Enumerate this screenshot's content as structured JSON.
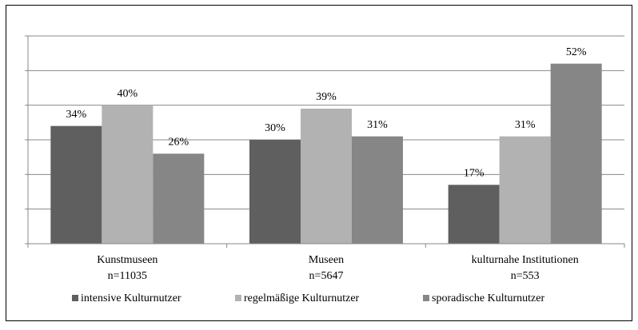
{
  "chart_data": {
    "type": "bar",
    "categories": [
      "Kunstmuseen",
      "Museen",
      "kulturnahe Institutionen"
    ],
    "category_counts": [
      "n=11035",
      "n=5647",
      "n=553"
    ],
    "series": [
      {
        "name": "intensive Kulturnutzer",
        "color": "#5f5f5f",
        "values": [
          34,
          30,
          17
        ],
        "value_labels": [
          "34%",
          "30%",
          "17%"
        ]
      },
      {
        "name": "regelmäßige Kulturnutzer",
        "color": "#b2b2b2",
        "values": [
          40,
          39,
          31
        ],
        "value_labels": [
          "40%",
          "39%",
          "31%"
        ]
      },
      {
        "name": "sporadische Kulturnutzer",
        "color": "#868686",
        "values": [
          26,
          31,
          52
        ],
        "value_labels": [
          "26%",
          "31%",
          "52%"
        ]
      }
    ],
    "ylim": [
      0,
      60
    ],
    "yticks": [
      0,
      10,
      20,
      30,
      40,
      50,
      60
    ],
    "grid": true,
    "show_ytick_labels": false,
    "legend": "bottom"
  }
}
